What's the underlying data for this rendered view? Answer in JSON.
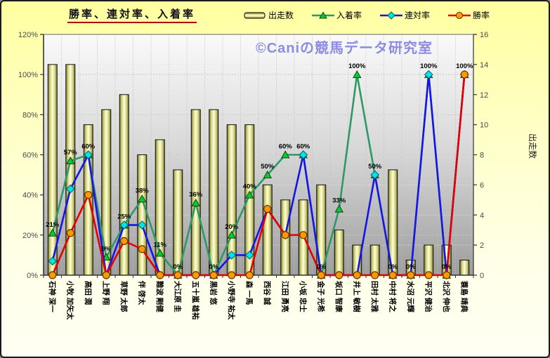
{
  "chart": {
    "title": "勝率、連対率、入着率",
    "watermark": "©Caniの競馬データ研究室",
    "legend": [
      {
        "label": "出走数",
        "icon": "bar-swatch-icon"
      },
      {
        "label": "入着率",
        "icon": "triangle-marker-icon"
      },
      {
        "label": "連対率",
        "icon": "diamond-marker-icon"
      },
      {
        "label": "勝率",
        "icon": "circle-marker-icon"
      }
    ],
    "axes": {
      "left_ticks": [
        "0%",
        "20%",
        "40%",
        "60%",
        "80%",
        "100%",
        "120%"
      ],
      "right_ticks": [
        "0",
        "2",
        "4",
        "6",
        "8",
        "10",
        "12",
        "14",
        "16"
      ],
      "right_title": "出走数"
    },
    "colors": {
      "place_line": "#2E9966",
      "place_marker": "#00CC33",
      "quinella_line": "#1515E8",
      "quinella_marker": "#00E5E5",
      "win_line": "#E60000",
      "win_marker": "#FF9900",
      "bar_light": "#FFFFD8",
      "bar_dark": "#6E6E2E",
      "title_underline": "#AA0000",
      "watermark_color": "#8C8CE0"
    }
  },
  "chart_data": {
    "type": "combo-bar-line",
    "categories": [
      "石神 深一",
      "小牧 加矢太",
      "高田 潤",
      "上野 翔",
      "草野 太郎",
      "伴 啓太",
      "難波 剛健",
      "大江原 圭",
      "五十嵐 雄祐",
      "黒岩 悠",
      "小野寺 祐太",
      "森 一馬",
      "西谷 誠",
      "江田 勇亮",
      "小坂 忠士",
      "金子 光希",
      "坂口 智康",
      "井上 敏樹",
      "田村 太雅",
      "中村 将之",
      "水沼 元輝",
      "平沢 健治",
      "北沢 伸也",
      "蓑島 靖典"
    ],
    "series": [
      {
        "name": "出走数",
        "type": "bar",
        "axis": "right",
        "values": [
          14,
          14,
          10,
          11,
          12,
          8,
          9,
          7,
          11,
          11,
          10,
          10,
          6,
          5,
          5,
          6,
          3,
          2,
          2,
          7,
          1,
          2,
          2,
          1
        ]
      },
      {
        "name": "入着率",
        "type": "line",
        "axis": "left",
        "marker": "triangle",
        "data_labels": true,
        "line_color": "#2E9966",
        "marker_color": "#00CC33",
        "values": [
          21,
          57,
          60,
          9,
          25,
          38,
          11,
          0,
          36,
          0,
          20,
          40,
          50,
          60,
          60,
          0,
          33,
          100,
          50,
          0,
          0,
          100,
          0,
          100
        ]
      },
      {
        "name": "連対率",
        "type": "line",
        "axis": "left",
        "marker": "diamond",
        "data_labels": false,
        "line_color": "#1515E8",
        "marker_color": "#00E5E5",
        "values": [
          7,
          43,
          60,
          0,
          25,
          25,
          0,
          0,
          0,
          0,
          10,
          10,
          33,
          20,
          60,
          0,
          0,
          0,
          50,
          0,
          0,
          100,
          0,
          100
        ]
      },
      {
        "name": "勝率",
        "type": "line",
        "axis": "left",
        "marker": "circle",
        "data_labels": false,
        "line_color": "#E60000",
        "marker_color": "#FF9900",
        "values": [
          0,
          21,
          40,
          0,
          17,
          13,
          0,
          0,
          0,
          0,
          0,
          0,
          33,
          20,
          20,
          0,
          0,
          0,
          0,
          0,
          0,
          0,
          0,
          100
        ]
      }
    ],
    "ylim_left": [
      0,
      120
    ],
    "ylim_right": [
      0,
      16
    ],
    "ylabel_right": "出走数",
    "grid": true,
    "legend_position": "top"
  }
}
